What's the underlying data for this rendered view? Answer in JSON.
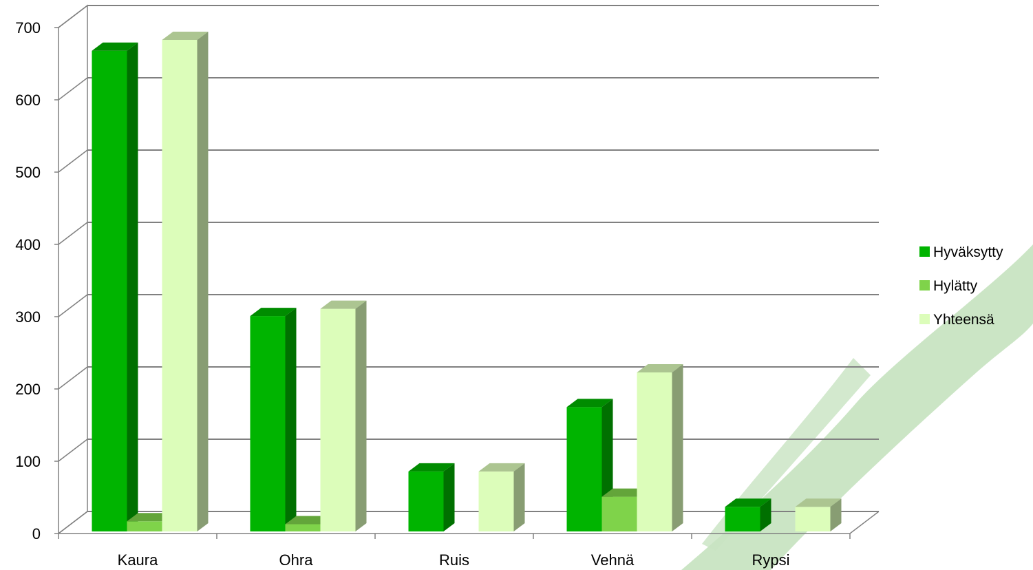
{
  "chart_data": {
    "type": "bar",
    "categories": [
      "Kaura",
      "Ohra",
      "Ruis",
      "Vehnä",
      "Rypsi"
    ],
    "series": [
      {
        "name": "Hyväksytty",
        "values": [
          665,
          298,
          83,
          172,
          34
        ],
        "color": "#00B400"
      },
      {
        "name": "Hylätty",
        "values": [
          14,
          10,
          0,
          48,
          0
        ],
        "color": "#7FD34A"
      },
      {
        "name": "Yhteensä",
        "values": [
          680,
          308,
          83,
          220,
          34
        ],
        "color": "#DCFDBA"
      }
    ],
    "yticks": [
      "0",
      "100",
      "200",
      "300",
      "400",
      "500",
      "600",
      "700"
    ],
    "ylim": [
      0,
      700
    ],
    "grid": true,
    "legend_position": "right",
    "style": "3d-clustered-column",
    "title": "",
    "xlabel": "",
    "ylabel": "",
    "decor_color": "#C8E4C2"
  }
}
